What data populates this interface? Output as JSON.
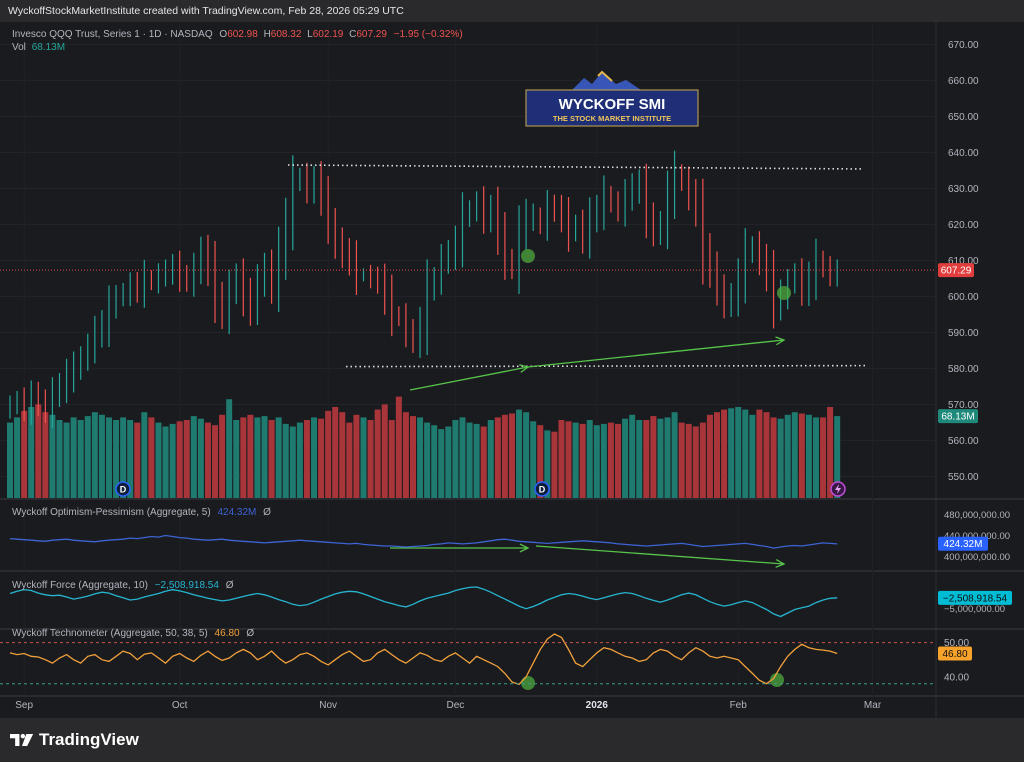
{
  "header": {
    "caption": "WyckoffStockMarketInstitute created with TradingView.com, Feb 28, 2026 05:29 UTC"
  },
  "legend": {
    "symbol": "Invesco QQQ Trust, Series 1 · 1D · NASDAQ",
    "o_label": "O",
    "o": "602.98",
    "h_label": "H",
    "h": "608.32",
    "l_label": "L",
    "l": "602.19",
    "c_label": "C",
    "c": "607.29",
    "change": "−1.95 (−0.32%)",
    "vol_label": "Vol",
    "vol": "68.13M"
  },
  "logo": {
    "title": "WYCKOFF SMI",
    "subtitle": "THE STOCK MARKET INSTITUTE"
  },
  "panes": {
    "op": {
      "label": "Wyckoff Optimism-Pessimism (Aggregate, 5)",
      "value": "424.32M",
      "suffix": "Ø",
      "ticks": [
        "480,000,000.00",
        "440,000,000.00",
        "400,000,000.00"
      ],
      "badge": "424.32M"
    },
    "force": {
      "label": "Wyckoff Force (Aggregate, 10)",
      "value": "−2,508,918.54",
      "suffix": "Ø",
      "ticks": [
        "−5,000,000.00"
      ],
      "badge": "−2,508,918.54"
    },
    "tech": {
      "label": "Wyckoff Technometer (Aggregate, 50, 38, 5)",
      "value": "46.80",
      "suffix": "Ø",
      "ticks": [
        "50.00",
        "40.00"
      ],
      "badge": "46.80"
    }
  },
  "price_badge": "607.29",
  "vol_badge": "68.13M",
  "event_markers": [
    "D",
    "D"
  ],
  "colors": {
    "up": "#26a69a",
    "down": "#ef5350",
    "vol_up": "#1f7a70",
    "vol_down": "#a8353a",
    "op_line": "#3d63d4",
    "force_line": "#26b5d0",
    "tech_line": "#f2a03b",
    "annot": "#57c54a",
    "price_line": "#e24b4b",
    "badge_blue": "#2962ff",
    "badge_cyan": "#00bcd4",
    "badge_orange": "#f7a32b"
  },
  "footer": {
    "brand": "TradingView"
  },
  "chart_data": [
    {
      "type": "candlestick",
      "title": "Invesco QQQ Trust, Series 1 · 1D · NASDAQ",
      "ylim": [
        544,
        674
      ],
      "yticks": [
        550,
        560,
        570,
        580,
        590,
        600,
        610,
        620,
        630,
        640,
        650,
        660,
        670
      ],
      "x_labels": [
        "Sep",
        "Oct",
        "Nov",
        "Dec",
        "2026",
        "Feb",
        "Mar"
      ],
      "x_label_index": [
        2,
        24,
        45,
        63,
        83,
        103,
        122
      ],
      "last_price": 607.29,
      "closes": [
        570,
        571,
        569,
        572,
        571,
        568,
        573,
        575,
        578,
        580,
        583,
        586,
        590,
        592,
        597,
        600,
        601,
        603,
        602,
        605,
        604,
        606,
        607,
        608,
        606,
        604,
        608,
        612,
        608,
        600,
        595,
        602,
        605,
        600,
        597,
        604,
        608,
        603,
        612,
        620,
        632,
        633,
        630,
        632,
        628,
        620,
        615,
        612,
        610,
        606,
        606,
        605,
        604,
        600,
        595,
        594,
        590,
        588,
        592,
        602,
        605,
        610,
        612,
        615,
        622,
        624,
        626,
        622,
        624,
        618,
        610,
        608,
        618,
        622,
        622,
        620,
        625,
        624,
        622,
        618,
        620,
        616,
        622,
        624,
        628,
        626,
        624,
        628,
        630,
        631,
        622,
        618,
        620,
        628,
        634,
        632,
        628,
        624,
        612,
        608,
        602,
        598,
        600,
        605,
        612,
        614,
        610,
        606,
        598,
        600,
        604,
        606,
        602,
        605,
        610,
        608,
        606,
        607
      ],
      "volume_millions": [
        58,
        62,
        67,
        70,
        72,
        66,
        64,
        60,
        58,
        62,
        60,
        63,
        66,
        64,
        62,
        60,
        62,
        60,
        58,
        66,
        62,
        58,
        55,
        57,
        59,
        60,
        63,
        61,
        58,
        56,
        64,
        76,
        60,
        62,
        64,
        62,
        63,
        60,
        62,
        57,
        55,
        58,
        60,
        62,
        61,
        67,
        70,
        66,
        58,
        64,
        62,
        60,
        68,
        72,
        60,
        78,
        66,
        63,
        62,
        58,
        56,
        53,
        55,
        60,
        62,
        58,
        57,
        55,
        60,
        62,
        64,
        65,
        68,
        66,
        59,
        56,
        52,
        51,
        60,
        59,
        58,
        57,
        60,
        56,
        57,
        58,
        57,
        61,
        64,
        60,
        60,
        63,
        61,
        62,
        66,
        58,
        57,
        55,
        58,
        64,
        66,
        68,
        69,
        70,
        68,
        64,
        68,
        66,
        62,
        61,
        64,
        66,
        65,
        64,
        62,
        62,
        70,
        63
      ],
      "volume_latest": "68.13M",
      "annotations": [
        {
          "type": "resistance",
          "level": 636.5
        },
        {
          "type": "support",
          "level": 580.5
        },
        {
          "type": "trend_arrow",
          "from": [
            580.3,
            604
          ],
          "to": [
            579.5,
            592
          ]
        }
      ]
    },
    {
      "type": "line",
      "title": "Wyckoff Optimism-Pessimism (Aggregate, 5)",
      "yticks": [
        480000000,
        440000000,
        400000000
      ],
      "ylim": [
        380000000,
        500000000
      ],
      "last": 424320000,
      "values_millions": [
        434,
        433,
        432,
        431,
        430,
        429,
        431,
        432,
        433,
        431,
        430,
        429,
        428,
        430,
        431,
        432,
        433,
        435,
        434,
        436,
        438,
        437,
        440,
        438,
        436,
        435,
        433,
        432,
        431,
        432,
        433,
        431,
        430,
        429,
        428,
        427,
        426,
        427,
        428,
        429,
        430,
        431,
        430,
        429,
        428,
        427,
        426,
        425,
        424,
        425,
        423,
        422,
        421,
        420,
        420,
        419,
        418,
        419,
        420,
        421,
        423,
        424,
        426,
        425,
        424,
        425,
        426,
        428,
        430,
        432,
        433,
        431,
        429,
        428,
        427,
        426,
        425,
        426,
        427,
        428,
        429,
        430,
        429,
        428,
        427,
        426,
        424,
        423,
        422,
        421,
        420,
        421,
        422,
        423,
        424,
        425,
        423,
        421,
        419,
        420,
        421,
        422,
        423,
        424,
        425,
        423,
        421,
        419,
        416,
        418,
        420,
        421,
        420,
        422,
        424,
        426,
        425,
        424
      ]
    },
    {
      "type": "line",
      "title": "Wyckoff Force (Aggregate, 10)",
      "yticks": [
        -5000000
      ],
      "ylim": [
        -9000000,
        3000000
      ],
      "last": -2508918.54,
      "values_millions": [
        -1.5,
        -1.0,
        -0.6,
        -0.8,
        -1.4,
        -1.8,
        -2.0,
        -1.9,
        -2.3,
        -2.8,
        -2.5,
        -2.1,
        -1.6,
        -1.2,
        -1.4,
        -2.0,
        -2.5,
        -3.0,
        -2.8,
        -2.3,
        -1.9,
        -1.5,
        -1.0,
        -0.6,
        -0.9,
        -1.3,
        -1.8,
        -2.2,
        -2.6,
        -2.9,
        -3.2,
        -3.0,
        -2.6,
        -2.2,
        -1.8,
        -1.5,
        -1.8,
        -2.3,
        -2.9,
        -3.4,
        -4.0,
        -4.3,
        -4.1,
        -3.5,
        -2.8,
        -2.2,
        -1.6,
        -1.2,
        -1.0,
        -1.1,
        -1.6,
        -2.2,
        -2.8,
        -3.4,
        -3.8,
        -4.3,
        -4.6,
        -4.0,
        -3.2,
        -2.6,
        -2.2,
        -1.8,
        -1.4,
        -0.8,
        -0.4,
        -0.1,
        0.0,
        -0.5,
        -1.2,
        -2.0,
        -2.8,
        -3.6,
        -4.4,
        -5.0,
        -4.5,
        -3.8,
        -3.0,
        -2.4,
        -1.8,
        -1.5,
        -1.7,
        -2.1,
        -2.6,
        -2.9,
        -2.5,
        -2.0,
        -1.6,
        -1.3,
        -1.5,
        -2.0,
        -2.6,
        -3.1,
        -3.5,
        -3.0,
        -2.4,
        -1.8,
        -1.4,
        -1.8,
        -2.6,
        -3.4,
        -4.0,
        -4.4,
        -4.1,
        -3.6,
        -3.2,
        -3.6,
        -4.4,
        -5.2,
        -6.2,
        -6.8,
        -6.0,
        -5.2,
        -4.8,
        -4.4,
        -3.6,
        -3.0,
        -2.6,
        -2.5
      ]
    },
    {
      "type": "line",
      "title": "Wyckoff Technometer (Aggregate, 50, 38, 5)",
      "yticks": [
        50,
        40
      ],
      "ylim": [
        35,
        52.5
      ],
      "upper_band": 50,
      "lower_band": 38,
      "last": 46.8,
      "values": [
        47,
        46.5,
        46.8,
        46,
        45.8,
        45,
        44,
        45.5,
        46.5,
        45,
        44,
        46,
        46.5,
        45,
        44.5,
        46,
        47.5,
        46.8,
        45,
        46.6,
        47,
        45.5,
        44,
        46,
        46.8,
        45.5,
        44.5,
        46.3,
        47.5,
        46,
        44.8,
        45.5,
        47,
        48,
        47,
        45,
        46,
        47.5,
        45.5,
        44,
        45,
        46.5,
        47,
        46,
        44.5,
        43.5,
        45,
        46.5,
        47.5,
        46,
        44.5,
        45,
        47,
        48,
        46.5,
        45,
        44,
        45.5,
        47,
        46.3,
        45,
        44.5,
        46,
        47,
        45.5,
        44,
        46,
        45,
        44,
        43,
        41,
        38.5,
        37.8,
        40,
        44,
        48,
        51,
        52.5,
        51.5,
        48,
        44,
        43,
        45,
        47,
        48.5,
        48,
        47,
        46,
        45.5,
        44.5,
        45,
        47,
        48,
        47.5,
        46,
        45,
        47,
        48.5,
        47.5,
        46,
        45.5,
        46,
        45.5,
        45,
        43,
        41,
        39,
        38,
        39.5,
        43,
        46,
        48,
        49.5,
        48.5,
        48,
        47.8,
        47.5,
        46.8
      ]
    }
  ]
}
